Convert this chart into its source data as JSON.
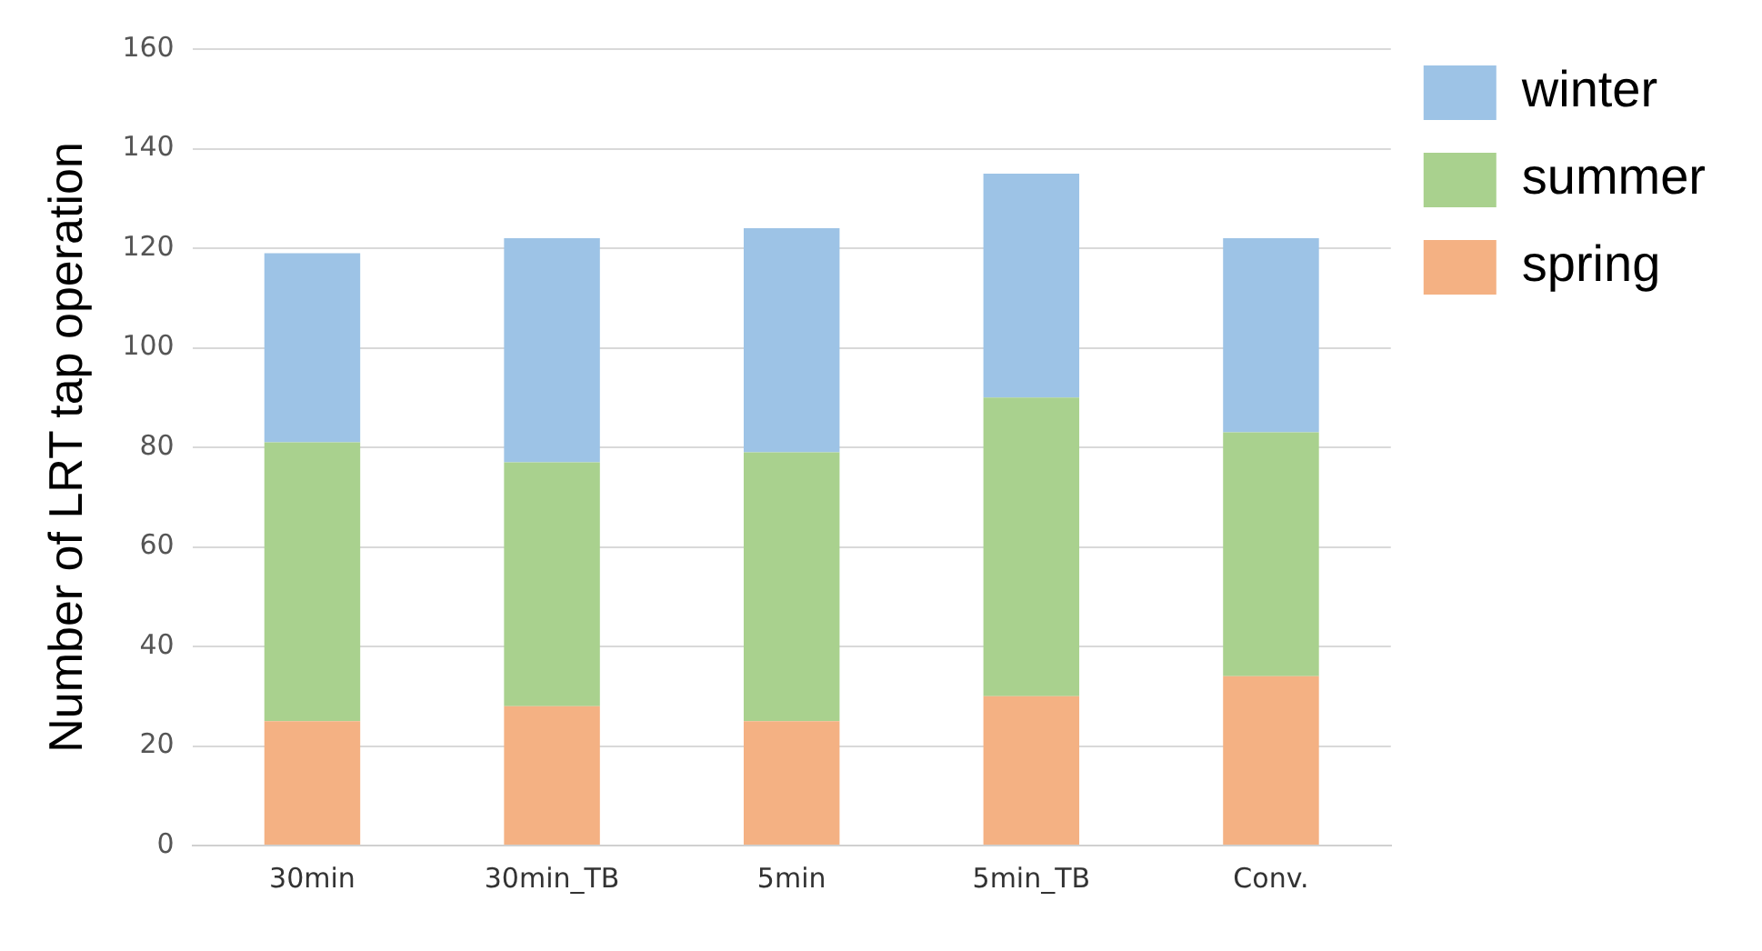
{
  "chart_data": {
    "type": "bar",
    "stacked": true,
    "ylabel": "Number of LRT tap operation",
    "categories": [
      "30min",
      "30min_TB",
      "5min",
      "5min_TB",
      "Conv."
    ],
    "series": [
      {
        "name": "spring",
        "color": "#f4b183",
        "values": [
          25,
          28,
          25,
          30,
          34
        ]
      },
      {
        "name": "summer",
        "color": "#a9d18e",
        "values": [
          56,
          49,
          54,
          60,
          49
        ]
      },
      {
        "name": "winter",
        "color": "#9dc3e6",
        "values": [
          38,
          45,
          45,
          45,
          39
        ]
      }
    ],
    "ylim": [
      0,
      160
    ],
    "yticks": [
      0,
      20,
      40,
      60,
      80,
      100,
      120,
      140,
      160
    ],
    "grid": "y",
    "legend": "top right"
  }
}
